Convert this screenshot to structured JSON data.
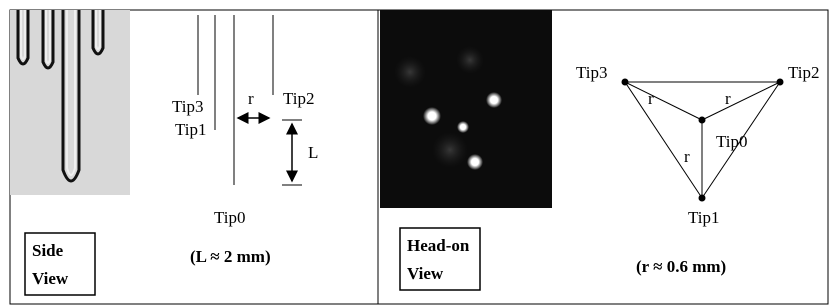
{
  "side_view": {
    "labels": {
      "tip3": "Tip3",
      "r": "r",
      "tip2": "Tip2",
      "tip1": "Tip1",
      "l": "L",
      "tip0": "Tip0"
    },
    "caption": "(L ≈ 2 mm)",
    "box": [
      "Side",
      "View"
    ]
  },
  "head_on_view": {
    "labels": {
      "tip3": "Tip3",
      "r_left": "r",
      "r_right": "r",
      "tip2": "Tip2",
      "tip0": "Tip0",
      "r_bottom": "r",
      "tip1": "Tip1"
    },
    "caption": "(r ≈ 0.6 mm)",
    "box": [
      "Head-on",
      "View"
    ]
  }
}
